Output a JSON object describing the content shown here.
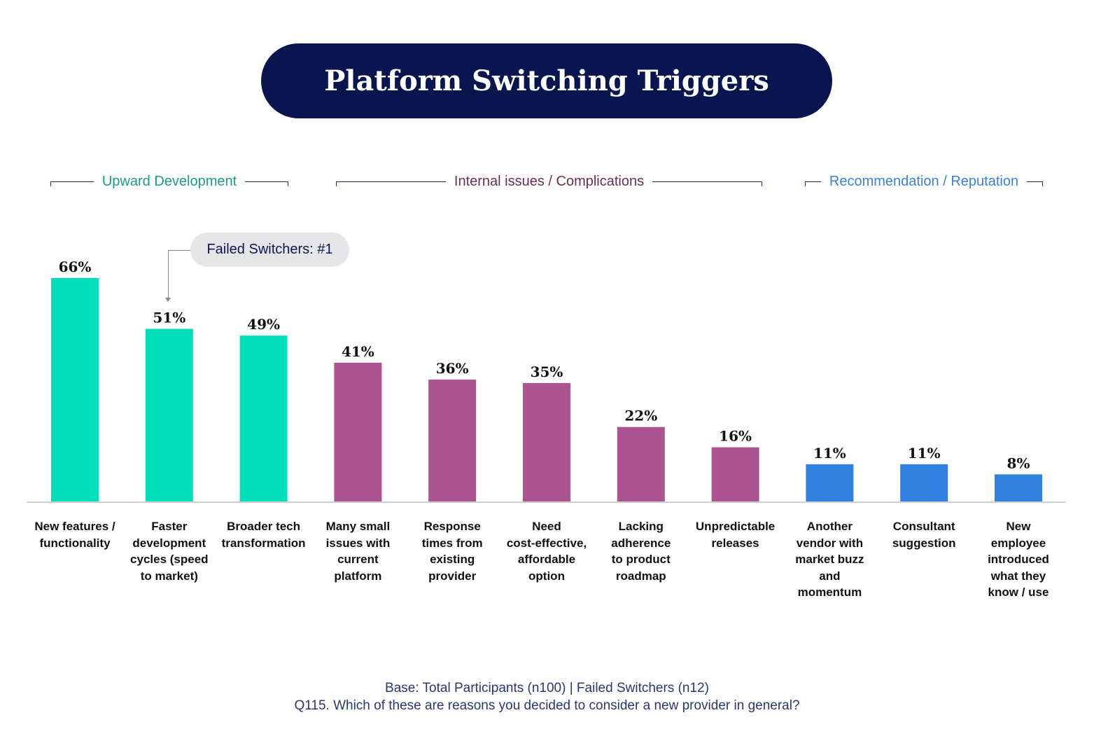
{
  "title": "Platform Switching Triggers",
  "groups": [
    {
      "label": "Upward Development",
      "color": "#1a9c7f"
    },
    {
      "label": "Internal issues / Complications",
      "color": "#6b2e55"
    },
    {
      "label": "Recommendation / Reputation",
      "color": "#3a7fe0"
    }
  ],
  "callout": {
    "label": "Failed Switchers: #1"
  },
  "footer": {
    "base": "Base: Total Participants (n100) | Failed Switchers (n12)",
    "question": "Q115. Which of these are reasons you decided to consider a new provider in general?"
  },
  "chart_data": {
    "type": "bar",
    "categories": [
      "New features /\nfunctionality",
      "Faster\ndevelopment\ncycles (speed\nto market)",
      "Broader tech\ntransformation",
      "Many small\nissues with\ncurrent\nplatform",
      "Response\ntimes from\nexisting\nprovider",
      "Need\ncost-effective,\naffordable\noption",
      "Lacking\nadherence\nto product\nroadmap",
      "Unpredictable\nreleases",
      "Another\nvendor with\nmarket buzz\nand\nmomentum",
      "Consultant\nsuggestion",
      "New\nemployee\nintroduced\nwhat they\nknow / use"
    ],
    "values": [
      66,
      51,
      49,
      41,
      36,
      35,
      22,
      16,
      11,
      11,
      8
    ],
    "data_labels": [
      "66%",
      "51%",
      "49%",
      "41%",
      "36%",
      "35%",
      "22%",
      "16%",
      "11%",
      "11%",
      "8%"
    ],
    "group_index": [
      0,
      0,
      0,
      1,
      1,
      1,
      1,
      1,
      2,
      2,
      2
    ],
    "bar_colors": [
      "#00dfbb",
      "#ab5490",
      "#3180e0"
    ],
    "title": "Platform Switching Triggers",
    "xlabel": "",
    "ylabel": "",
    "ylim": [
      0,
      66
    ],
    "grid": false
  }
}
